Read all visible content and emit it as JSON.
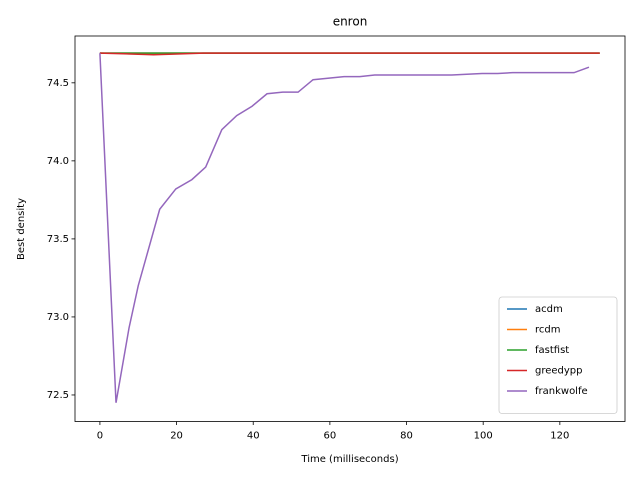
{
  "chart_data": {
    "type": "line",
    "title": "enron",
    "x_label": "Time (milliseconds)",
    "y_label": "Best density",
    "xlim": [
      -6.5,
      137
    ],
    "xticks": [
      0,
      20,
      40,
      60,
      80,
      100,
      120
    ],
    "ylim": [
      72.33,
      74.8
    ],
    "yticks": [
      72.5,
      73.0,
      73.5,
      74.0,
      74.5
    ],
    "legend": "lower right",
    "series": [
      {
        "name": "acdm",
        "color": "#1f77b4",
        "x": [
          0,
          130.4
        ],
        "values": [
          74.69,
          74.69
        ]
      },
      {
        "name": "rcdm",
        "color": "#ff7f0e",
        "x": [
          0,
          130.4
        ],
        "values": [
          74.69,
          74.69
        ]
      },
      {
        "name": "fastfist",
        "color": "#2ca02c",
        "x": [
          0,
          27,
          130.4
        ],
        "values": [
          74.69,
          74.69,
          74.69
        ]
      },
      {
        "name": "greedypp",
        "color": "#d62728",
        "x": [
          0,
          8,
          14,
          20,
          27,
          130.4
        ],
        "values": [
          74.69,
          74.685,
          74.68,
          74.685,
          74.69,
          74.69
        ]
      },
      {
        "name": "frankwolfe",
        "color": "#9467bd",
        "x": [
          0,
          4.2,
          7.6,
          10,
          15.6,
          19.8,
          24,
          27.6,
          31.8,
          35.7,
          39.7,
          43.6,
          47.7,
          51.7,
          55.6,
          63.7,
          67.8,
          71.7,
          79.8,
          91.8,
          99.7,
          103.8,
          107.7,
          115.8,
          123.7,
          127.6
        ],
        "values": [
          74.69,
          72.45,
          72.93,
          73.2,
          73.69,
          73.82,
          73.88,
          73.96,
          74.2,
          74.29,
          74.35,
          74.43,
          74.44,
          74.44,
          74.52,
          74.54,
          74.54,
          74.55,
          74.55,
          74.55,
          74.56,
          74.56,
          74.565,
          74.565,
          74.565,
          74.6
        ]
      }
    ]
  }
}
